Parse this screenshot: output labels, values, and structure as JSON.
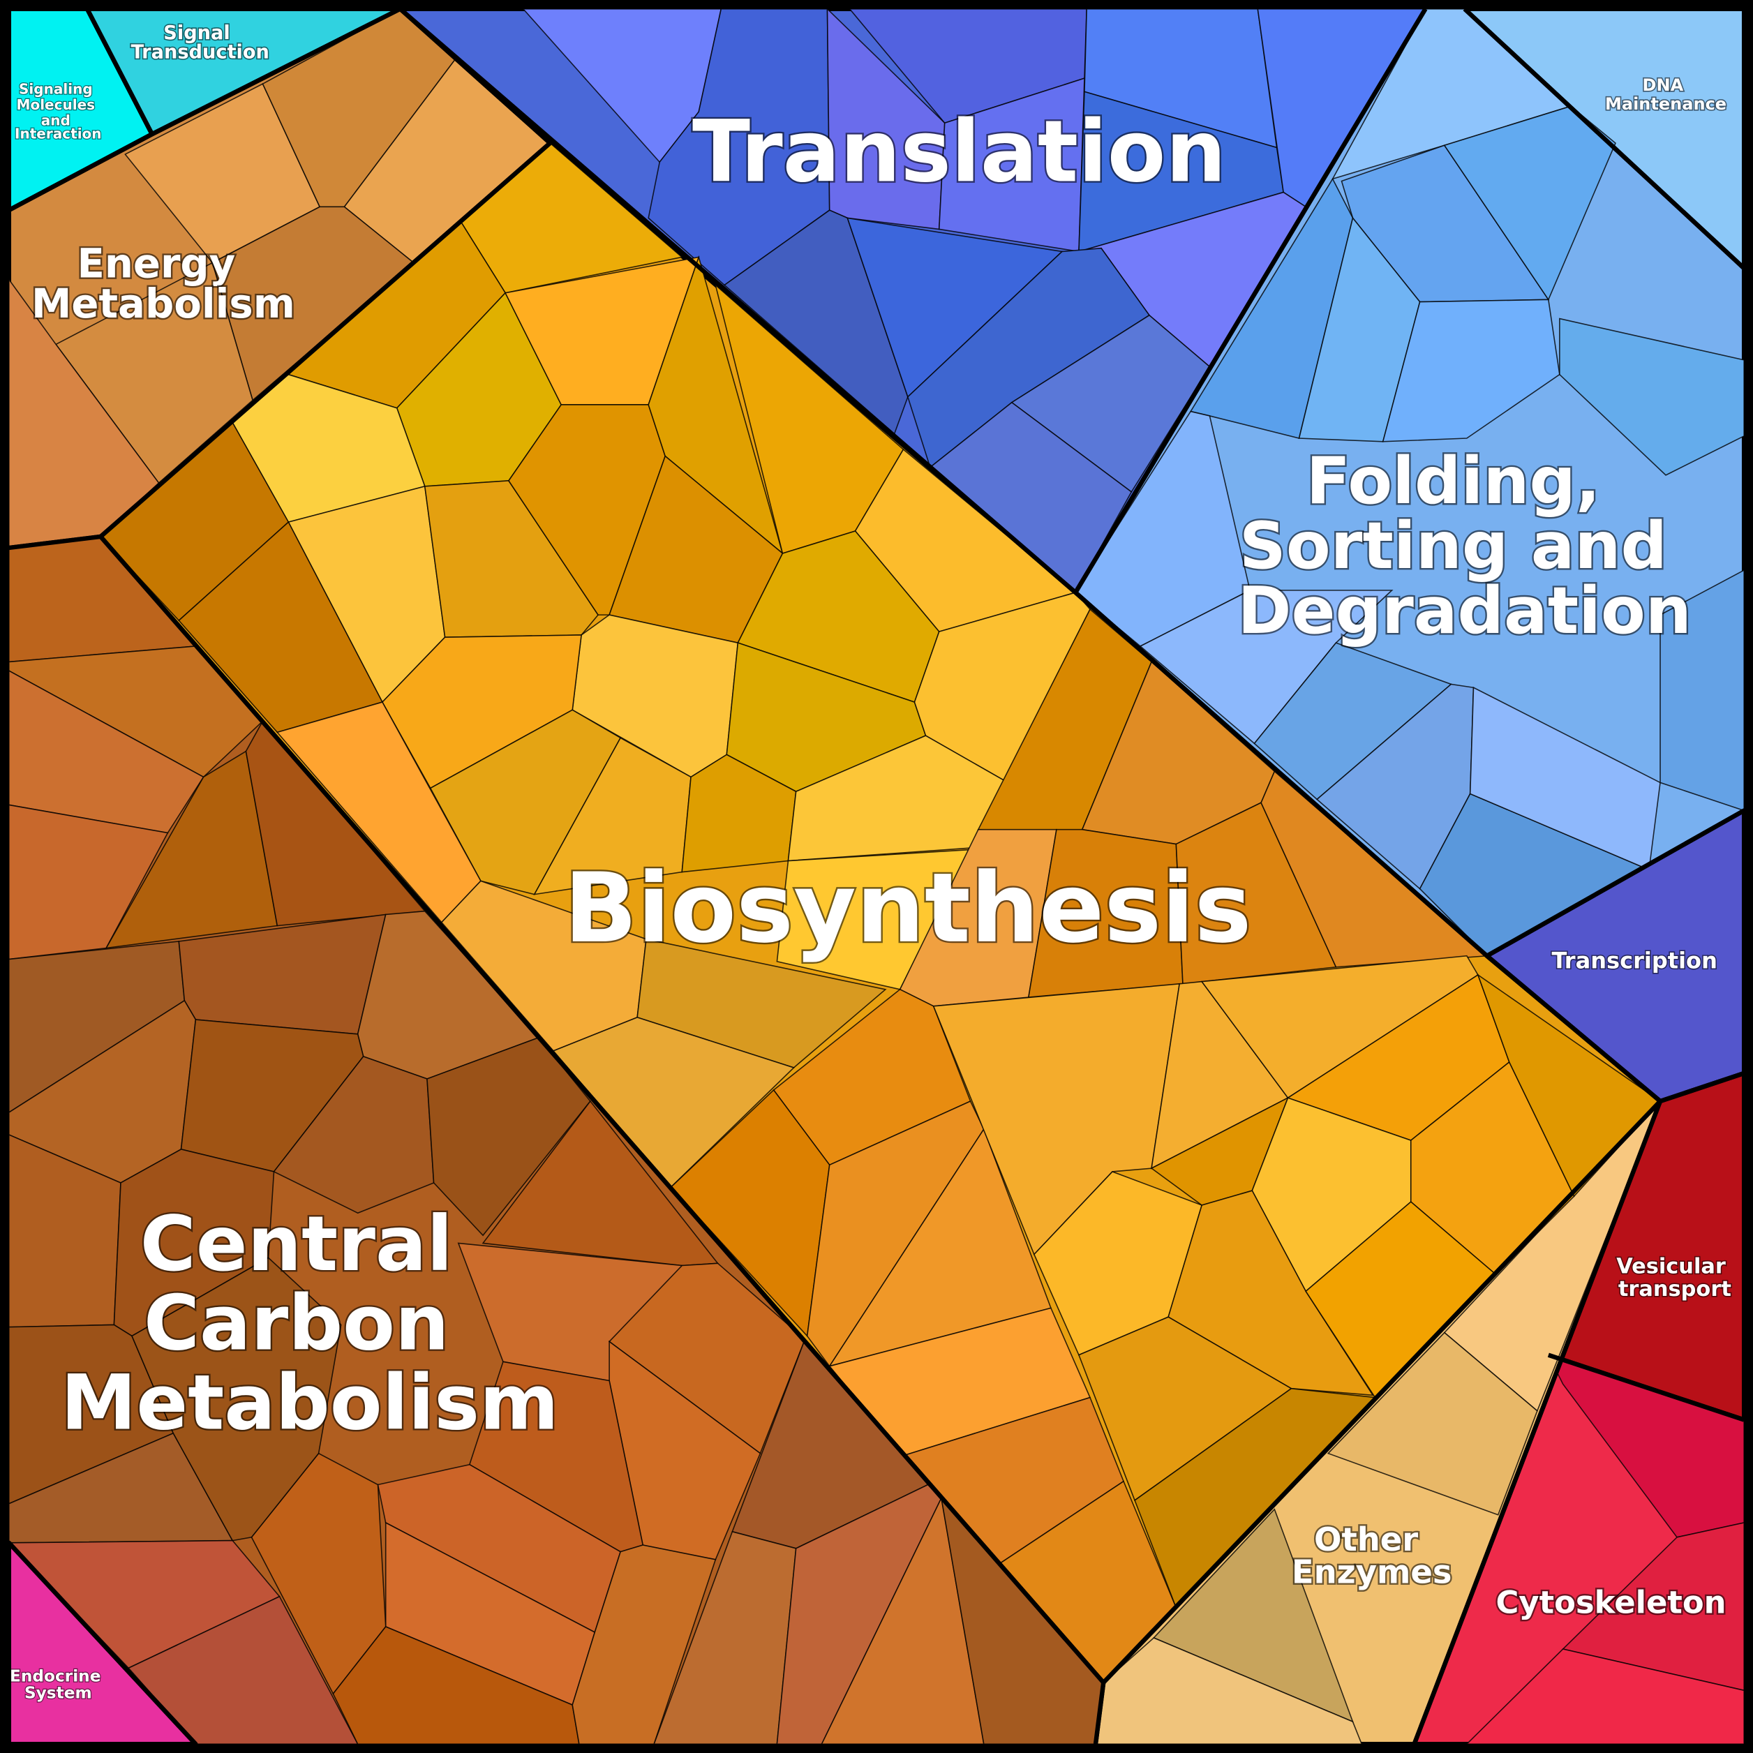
{
  "regions": [
    {
      "id": "signaling",
      "label": [
        "Signaling",
        "Molecules",
        "and",
        "Interaction"
      ],
      "color": "#00F2F2"
    },
    {
      "id": "signal_transduction",
      "label": [
        "Signal",
        "Transduction"
      ],
      "color": "#30D2E0"
    },
    {
      "id": "energy",
      "label": [
        "Energy",
        "Metabolism"
      ],
      "color": "#D38A40"
    },
    {
      "id": "translation",
      "label": [
        "Translation"
      ],
      "color": "#4A68D8"
    },
    {
      "id": "dna",
      "label": [
        "DNA",
        "Maintenance"
      ],
      "color": "#8CC8F8"
    },
    {
      "id": "folding",
      "label": [
        "Folding,",
        "Sorting and",
        "Degradation"
      ],
      "color": "#78B0F0"
    },
    {
      "id": "transcription",
      "label": [
        "Transcription"
      ],
      "color": "#5456CC"
    },
    {
      "id": "vesicular",
      "label": [
        "Vesicular",
        "transport"
      ],
      "color": "#B81018"
    },
    {
      "id": "cytoskeleton",
      "label": [
        "Cytoskeleton"
      ],
      "color": "#EE2A4A"
    },
    {
      "id": "other_enzymes",
      "label": [
        "Other",
        "Enzymes"
      ],
      "color": "#F0C070"
    },
    {
      "id": "biosynthesis",
      "label": [
        "Biosynthesis"
      ],
      "color": "#E8A010"
    },
    {
      "id": "central_carbon",
      "label": [
        "Central",
        "Carbon",
        "Metabolism"
      ],
      "color": "#B05E20"
    },
    {
      "id": "endocrine",
      "label": [
        "Endocrine",
        "System"
      ],
      "color": "#E830A0"
    }
  ]
}
